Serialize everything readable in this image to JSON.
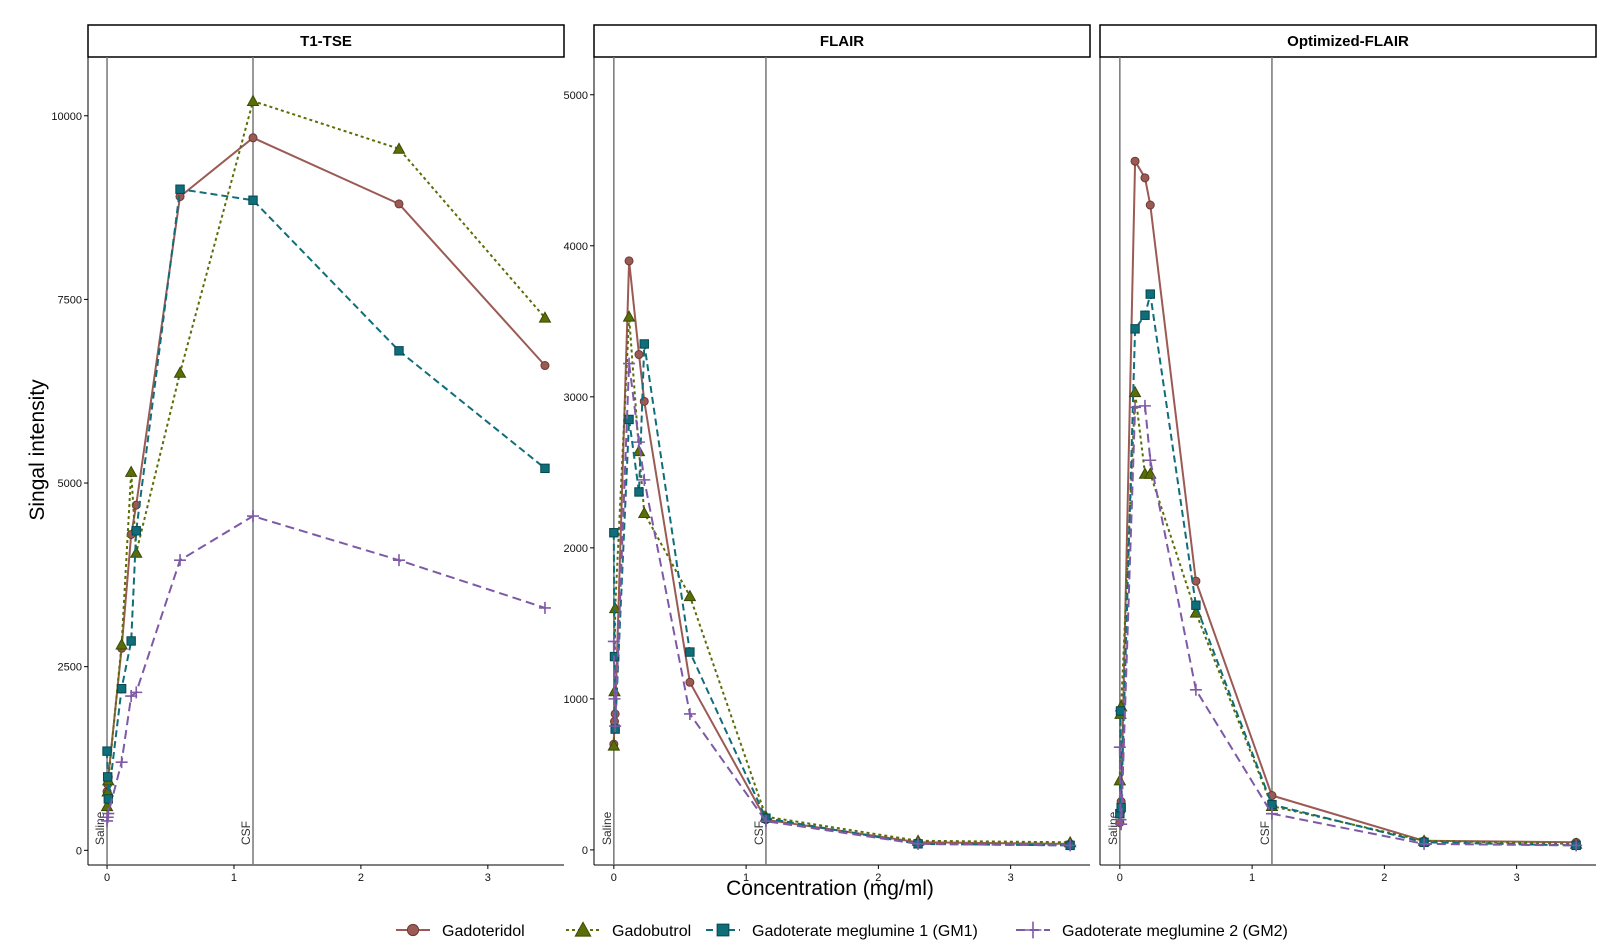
{
  "chart_data": {
    "type": "line",
    "ylabel": "Singal intensity",
    "xlabel": "Concentration (mg/ml)",
    "x_ticks": [
      "0",
      "1",
      "2",
      "3"
    ],
    "vlines": [
      {
        "x": 0,
        "label": "Saline"
      },
      {
        "x": 1.15,
        "label": "CSF"
      }
    ],
    "colors": {
      "Gadoteridol": "#9b5a54",
      "Gadobutrol": "#5a6e08",
      "Gadoterate meglumine 1 (GM1)": "#0f6e7a",
      "Gadoterate meglumine 2 (GM2)": "#7e5aa6"
    },
    "legend": [
      {
        "name": "Gadoteridol",
        "marker": "circle"
      },
      {
        "name": "Gadobutrol",
        "marker": "triangle"
      },
      {
        "name": "Gadoterate meglumine 1 (GM1)",
        "marker": "square"
      },
      {
        "name": "Gadoterate meglumine 2 (GM2)",
        "marker": "plus"
      }
    ],
    "panels": [
      {
        "title": "T1-TSE",
        "xlim": [
          -0.15,
          3.6
        ],
        "ylim": [
          -200,
          10800
        ],
        "y_ticks": [
          0,
          2500,
          5000,
          7500,
          10000
        ],
        "series": [
          {
            "name": "Gadoteridol",
            "x": [
              0,
              0.005,
              0.01,
              0.115,
              0.19,
              0.23,
              0.575,
              1.15,
              2.3,
              3.45
            ],
            "y": [
              800,
              900,
              1000,
              2750,
              4300,
              4700,
              8900,
              9700,
              8800,
              6600
            ]
          },
          {
            "name": "Gadobutrol",
            "x": [
              0,
              0.005,
              0.01,
              0.115,
              0.19,
              0.23,
              0.575,
              1.15,
              2.3,
              3.45
            ],
            "y": [
              600,
              800,
              950,
              2800,
              5150,
              4050,
              6500,
              10200,
              9550,
              7250
            ]
          },
          {
            "name": "Gadoterate meglumine 1 (GM1)",
            "x": [
              0,
              0.005,
              0.01,
              0.115,
              0.19,
              0.23,
              0.575,
              1.15,
              2.3,
              3.45
            ],
            "y": [
              1350,
              1000,
              700,
              2200,
              2850,
              4350,
              9000,
              8850,
              6800,
              5200
            ]
          },
          {
            "name": "Gadoterate meglumine 2 (GM2)",
            "x": [
              0,
              0.005,
              0.01,
              0.115,
              0.19,
              0.23,
              0.575,
              1.15,
              2.3,
              3.45
            ],
            "y": [
              400,
              450,
              500,
              1200,
              2100,
              2150,
              3950,
              4550,
              3950,
              3300
            ]
          }
        ]
      },
      {
        "title": "FLAIR",
        "xlim": [
          -0.15,
          3.6
        ],
        "ylim": [
          -100,
          5250
        ],
        "y_ticks": [
          0,
          1000,
          2000,
          3000,
          4000,
          5000
        ],
        "series": [
          {
            "name": "Gadoteridol",
            "x": [
              0,
              0.005,
              0.01,
              0.115,
              0.19,
              0.23,
              0.575,
              1.15,
              2.3,
              3.45
            ],
            "y": [
              700,
              850,
              900,
              3900,
              3280,
              2970,
              1110,
              200,
              50,
              40
            ]
          },
          {
            "name": "Gadobutrol",
            "x": [
              0,
              0.005,
              0.01,
              0.115,
              0.19,
              0.23,
              0.575,
              1.15,
              2.3,
              3.45
            ],
            "y": [
              690,
              1050,
              1600,
              3530,
              2640,
              2230,
              1680,
              220,
              60,
              50
            ]
          },
          {
            "name": "Gadoterate meglumine 1 (GM1)",
            "x": [
              0,
              0.005,
              0.01,
              0.115,
              0.19,
              0.23,
              0.575,
              1.15,
              2.3,
              3.45
            ],
            "y": [
              2100,
              1280,
              800,
              2850,
              2370,
              3350,
              1310,
              210,
              40,
              30
            ]
          },
          {
            "name": "Gadoterate meglumine 2 (GM2)",
            "x": [
              0,
              0.005,
              0.01,
              0.115,
              0.19,
              0.23,
              0.575,
              1.15,
              2.3,
              3.45
            ],
            "y": [
              1380,
              1000,
              820,
              3220,
              2700,
              2450,
              900,
              190,
              40,
              30
            ]
          }
        ]
      },
      {
        "title": "Optimized-FLAIR",
        "xlim": [
          -0.15,
          3.6
        ],
        "ylim": [
          -100,
          5250
        ],
        "y_ticks": [],
        "series": [
          {
            "name": "Gadoteridol",
            "x": [
              0,
              0.005,
              0.01,
              0.115,
              0.19,
              0.23,
              0.575,
              1.15,
              2.3,
              3.45
            ],
            "y": [
              180,
              250,
              320,
              4560,
              4450,
              4270,
              1780,
              360,
              60,
              50
            ]
          },
          {
            "name": "Gadobutrol",
            "x": [
              0,
              0.005,
              0.01,
              0.115,
              0.19,
              0.23,
              0.575,
              1.15,
              2.3,
              3.45
            ],
            "y": [
              460,
              900,
              950,
              3030,
              2490,
              2490,
              1570,
              290,
              60,
              40
            ]
          },
          {
            "name": "Gadoterate meglumine 1 (GM1)",
            "x": [
              0,
              0.005,
              0.01,
              0.115,
              0.19,
              0.23,
              0.575,
              1.15,
              2.3,
              3.45
            ],
            "y": [
              240,
              920,
              280,
              3450,
              3540,
              3680,
              1620,
              300,
              50,
              30
            ]
          },
          {
            "name": "Gadoterate meglumine 2 (GM2)",
            "x": [
              0,
              0.005,
              0.01,
              0.115,
              0.19,
              0.23,
              0.575,
              1.15,
              2.3,
              3.45
            ],
            "y": [
              680,
              200,
              170,
              2930,
              2940,
              2580,
              1060,
              240,
              40,
              30
            ]
          }
        ]
      }
    ]
  }
}
